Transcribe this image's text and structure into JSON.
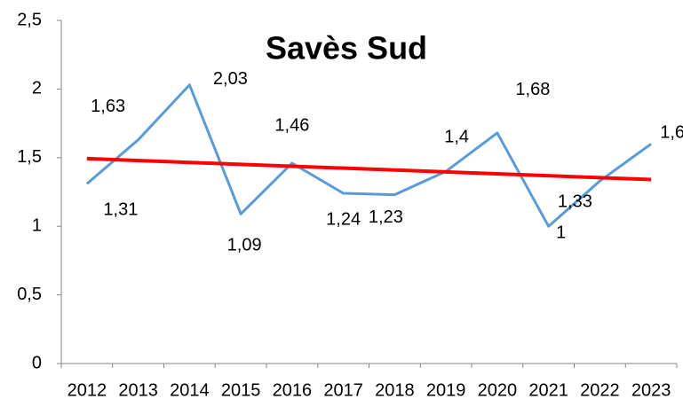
{
  "chart_data": {
    "type": "line",
    "title": "Savès Sud",
    "categories": [
      "2012",
      "2013",
      "2014",
      "2015",
      "2016",
      "2017",
      "2018",
      "2019",
      "2020",
      "2021",
      "2022",
      "2023"
    ],
    "series": [
      {
        "color": "#5b9bd5",
        "values": [
          1.31,
          1.63,
          2.03,
          1.09,
          1.46,
          1.24,
          1.23,
          1.4,
          1.68,
          1,
          1.33,
          1.6
        ],
        "value_labels": [
          "1,31",
          "1,63",
          "2,03",
          "1,09",
          "1,46",
          "1,24",
          "1,23",
          "1,4",
          "1,68",
          "1",
          "1,33",
          "1,6"
        ]
      }
    ],
    "trendline": true,
    "trendline_color": "#ff0000",
    "ylim": [
      0,
      2.5
    ],
    "yticks": [
      0,
      {
        "value": 0.5,
        "label": "0,5"
      },
      1,
      {
        "value": 1.5,
        "label": "1,5"
      },
      2,
      {
        "value": 2.5,
        "label": "2,5"
      }
    ]
  }
}
